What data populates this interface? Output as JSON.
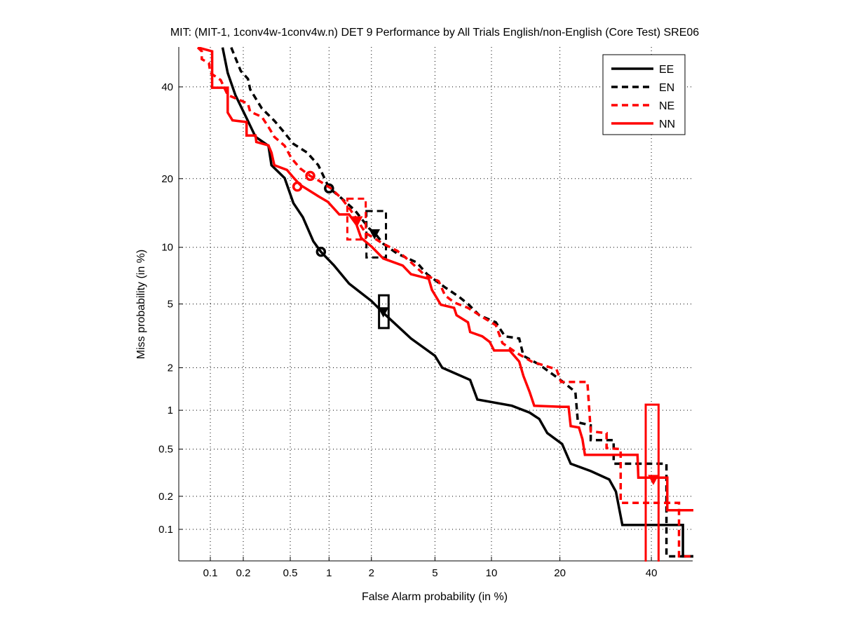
{
  "chart_data": {
    "type": "line",
    "scale": "normal-deviate (DET)",
    "title": "MIT: (MIT-1, 1conv4w-1conv4w.n) DET 9 Performance by All Trials English/non-English (Core Test) SRE06",
    "xlabel": "False Alarm probability (in %)",
    "ylabel": "Miss probability (in %)",
    "xlim": [
      0.05,
      50
    ],
    "ylim": [
      0.05,
      50
    ],
    "grid": true,
    "legend_position": "top-right",
    "xticks": [
      0.1,
      0.2,
      0.5,
      1,
      2,
      5,
      10,
      20,
      40
    ],
    "xtick_labels": [
      "0.1",
      "0.2",
      "0.5",
      "1",
      "2",
      "5",
      "10",
      "20",
      "40"
    ],
    "yticks": [
      0.1,
      0.2,
      0.5,
      1,
      2,
      5,
      10,
      20,
      40
    ],
    "ytick_labels": [
      "0.1",
      "0.2",
      "0.5",
      "1",
      "2",
      "5",
      "10",
      "20",
      "40"
    ],
    "series": [
      {
        "name": "EE",
        "color": "#000000",
        "dashed": false,
        "points": [
          [
            0.13,
            50
          ],
          [
            0.145,
            43.5
          ],
          [
            0.17,
            38
          ],
          [
            0.214,
            32.5
          ],
          [
            0.256,
            28.3
          ],
          [
            0.33,
            26.4
          ],
          [
            0.35,
            22.5
          ],
          [
            0.45,
            20.1
          ],
          [
            0.53,
            15.9
          ],
          [
            0.63,
            13.8
          ],
          [
            0.76,
            10.7
          ],
          [
            0.87,
            9.5
          ],
          [
            1.09,
            8.1
          ],
          [
            1.4,
            6.5
          ],
          [
            2.0,
            5.2
          ],
          [
            2.4,
            4.44
          ],
          [
            3.6,
            3.1
          ],
          [
            5.0,
            2.4
          ],
          [
            5.5,
            2.0
          ],
          [
            7.8,
            1.65
          ],
          [
            8.5,
            1.2
          ],
          [
            12.5,
            1.08
          ],
          [
            15,
            0.96
          ],
          [
            16.5,
            0.86
          ],
          [
            17.8,
            0.67
          ],
          [
            20.4,
            0.55
          ],
          [
            22,
            0.38
          ],
          [
            26,
            0.33
          ],
          [
            30,
            0.28
          ],
          [
            31.5,
            0.22
          ],
          [
            33,
            0.11
          ],
          [
            48,
            0.11
          ],
          [
            48,
            0.055
          ],
          [
            51,
            0.055
          ]
        ],
        "circle": [
          0.87,
          9.5
        ],
        "triangle": [
          2.4,
          4.5
        ],
        "box": [
          2.25,
          2.6,
          3.6,
          5.6
        ]
      },
      {
        "name": "EN",
        "color": "#000000",
        "dashed": true,
        "points": [
          [
            0.156,
            50
          ],
          [
            0.19,
            44
          ],
          [
            0.22,
            42
          ],
          [
            0.23,
            39.4
          ],
          [
            0.29,
            34.8
          ],
          [
            0.37,
            31.9
          ],
          [
            0.43,
            29.8
          ],
          [
            0.53,
            26.8
          ],
          [
            0.68,
            25
          ],
          [
            0.83,
            22.5
          ],
          [
            1.0,
            18.4
          ],
          [
            1.23,
            16.7
          ],
          [
            1.54,
            14.8
          ],
          [
            1.93,
            12.3
          ],
          [
            2.15,
            11.5
          ],
          [
            2.4,
            10.4
          ],
          [
            2.96,
            9.3
          ],
          [
            3.9,
            8.4
          ],
          [
            4.5,
            7.3
          ],
          [
            5.1,
            6.7
          ],
          [
            5.7,
            6.2
          ],
          [
            6.8,
            5.5
          ],
          [
            7.6,
            5.0
          ],
          [
            8.7,
            4.3
          ],
          [
            10.5,
            3.9
          ],
          [
            11.6,
            3.2
          ],
          [
            13.5,
            3.1
          ],
          [
            14.1,
            2.4
          ],
          [
            16.5,
            2.1
          ],
          [
            20.1,
            1.65
          ],
          [
            22.9,
            1.36
          ],
          [
            23.4,
            0.81
          ],
          [
            26,
            0.77
          ],
          [
            26,
            0.59
          ],
          [
            31,
            0.59
          ],
          [
            31,
            0.38
          ],
          [
            43.8,
            0.38
          ],
          [
            43.8,
            0.055
          ],
          [
            51,
            0.055
          ]
        ],
        "circle": [
          1.0,
          18.3
        ],
        "triangle": [
          2.1,
          11.6
        ],
        "box": [
          1.85,
          2.5,
          8.9,
          14.7
        ]
      },
      {
        "name": "NE",
        "color": "#ff0000",
        "dashed": true,
        "points": [
          [
            0.076,
            50
          ],
          [
            0.083,
            49
          ],
          [
            0.083,
            47
          ],
          [
            0.097,
            46
          ],
          [
            0.1,
            43.5
          ],
          [
            0.125,
            41.7
          ],
          [
            0.145,
            38
          ],
          [
            0.185,
            36.8
          ],
          [
            0.22,
            35.9
          ],
          [
            0.23,
            34
          ],
          [
            0.29,
            32.8
          ],
          [
            0.33,
            30.5
          ],
          [
            0.37,
            28.3
          ],
          [
            0.45,
            26.4
          ],
          [
            0.51,
            23.9
          ],
          [
            0.6,
            21.9
          ],
          [
            0.72,
            20.5
          ],
          [
            0.83,
            19.7
          ],
          [
            1.02,
            18.4
          ],
          [
            1.23,
            16.7
          ],
          [
            1.44,
            14.8
          ],
          [
            1.83,
            11.7
          ],
          [
            2.4,
            10.4
          ],
          [
            2.96,
            9.6
          ],
          [
            3.5,
            8.6
          ],
          [
            4.3,
            7.3
          ],
          [
            5.25,
            6.7
          ],
          [
            5.7,
            5.6
          ],
          [
            6.4,
            5.1
          ],
          [
            7.6,
            4.75
          ],
          [
            9.0,
            4.2
          ],
          [
            10.5,
            3.75
          ],
          [
            11.3,
            2.9
          ],
          [
            13.2,
            2.5
          ],
          [
            15.3,
            2.2
          ],
          [
            19.4,
            1.95
          ],
          [
            20.2,
            1.6
          ],
          [
            25.3,
            1.6
          ],
          [
            26,
            0.69
          ],
          [
            29.4,
            0.67
          ],
          [
            29.4,
            0.51
          ],
          [
            32.6,
            0.5
          ],
          [
            32.6,
            0.175
          ],
          [
            47,
            0.175
          ],
          [
            47,
            0.055
          ],
          [
            51,
            0.055
          ]
        ],
        "circle": [
          0.72,
          20.5
        ],
        "triangle": [
          1.6,
          13.3
        ],
        "box": [
          1.36,
          1.83,
          10.9,
          16.6
        ]
      },
      {
        "name": "NN",
        "color": "#ff0000",
        "dashed": false,
        "points": [
          [
            0.076,
            50
          ],
          [
            0.104,
            49
          ],
          [
            0.104,
            39.8
          ],
          [
            0.145,
            39.8
          ],
          [
            0.145,
            33.8
          ],
          [
            0.16,
            32
          ],
          [
            0.214,
            31.6
          ],
          [
            0.214,
            28.6
          ],
          [
            0.256,
            28.6
          ],
          [
            0.26,
            27.2
          ],
          [
            0.33,
            26.5
          ],
          [
            0.35,
            25
          ],
          [
            0.37,
            22.5
          ],
          [
            0.47,
            21.6
          ],
          [
            0.53,
            20.2
          ],
          [
            0.6,
            18.9
          ],
          [
            0.7,
            18
          ],
          [
            0.83,
            17
          ],
          [
            0.98,
            16.1
          ],
          [
            1.0,
            15.9
          ],
          [
            1.19,
            14.2
          ],
          [
            1.4,
            14.2
          ],
          [
            1.58,
            12.8
          ],
          [
            1.7,
            11.1
          ],
          [
            2.0,
            10.1
          ],
          [
            2.4,
            8.8
          ],
          [
            3.2,
            8.1
          ],
          [
            3.6,
            7.3
          ],
          [
            4.6,
            6.9
          ],
          [
            4.8,
            6.0
          ],
          [
            5.4,
            4.95
          ],
          [
            6.4,
            4.75
          ],
          [
            6.6,
            4.3
          ],
          [
            7.6,
            3.9
          ],
          [
            7.8,
            3.4
          ],
          [
            9.0,
            3.2
          ],
          [
            9.8,
            2.95
          ],
          [
            10.3,
            2.6
          ],
          [
            12.2,
            2.6
          ],
          [
            13.5,
            2.2
          ],
          [
            14.1,
            1.76
          ],
          [
            15,
            1.36
          ],
          [
            15.7,
            1.08
          ],
          [
            20.4,
            1.06
          ],
          [
            21.6,
            1.06
          ],
          [
            22,
            0.76
          ],
          [
            23.6,
            0.74
          ],
          [
            24.3,
            0.6
          ],
          [
            24.8,
            0.45
          ],
          [
            36.6,
            0.45
          ],
          [
            36.8,
            0.29
          ],
          [
            44,
            0.29
          ],
          [
            44,
            0.15
          ],
          [
            51,
            0.15
          ]
        ],
        "circle": [
          0.57,
          18.6
        ],
        "triangle": [
          40.5,
          0.28
        ],
        "box": [
          38.6,
          41.8,
          0.04,
          1.1
        ]
      }
    ]
  }
}
